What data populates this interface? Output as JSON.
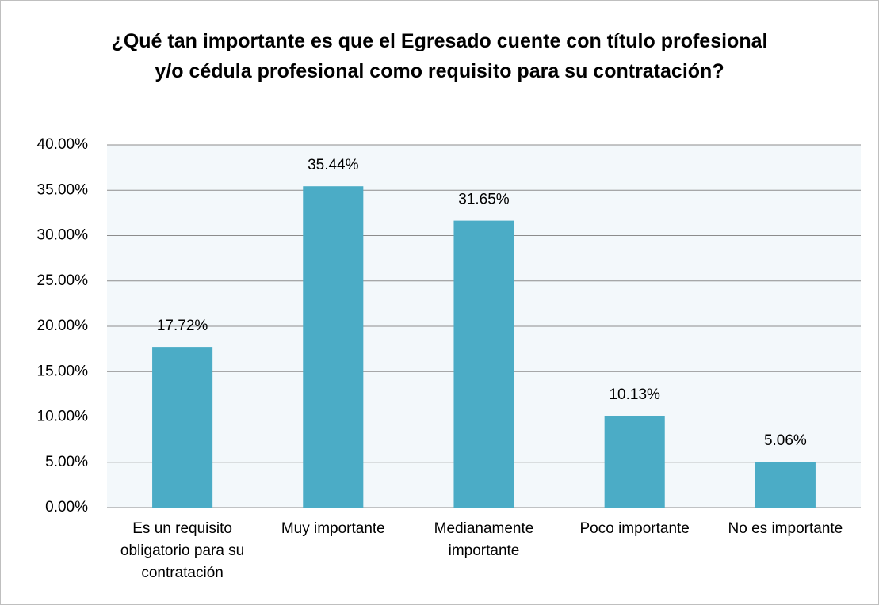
{
  "chart_data": {
    "type": "bar",
    "title": "¿Qué tan importante es que el Egresado cuente con título profesional y/o cédula profesional como requisito para su contratación?",
    "categories": [
      "Es un requisito obligatorio para su contratación",
      "Muy importante",
      "Medianamente importante",
      "Poco importante",
      "No es importante"
    ],
    "values": [
      17.72,
      35.44,
      31.65,
      10.13,
      5.06
    ],
    "value_labels": [
      "17.72%",
      "35.44%",
      "31.65%",
      "10.13%",
      "5.06%"
    ],
    "color": "#4bacc6",
    "ylim": [
      0,
      40
    ],
    "yticks": [
      {
        "value": 0,
        "label": "0.00%"
      },
      {
        "value": 5,
        "label": "5.00%"
      },
      {
        "value": 10,
        "label": "10.00%"
      },
      {
        "value": 15,
        "label": "15.00%"
      },
      {
        "value": 20,
        "label": "20.00%"
      },
      {
        "value": 25,
        "label": "25.00%"
      },
      {
        "value": 30,
        "label": "30.00%"
      },
      {
        "value": 35,
        "label": "35.00%"
      },
      {
        "value": 40,
        "label": "40.00%"
      }
    ],
    "grid": true
  }
}
